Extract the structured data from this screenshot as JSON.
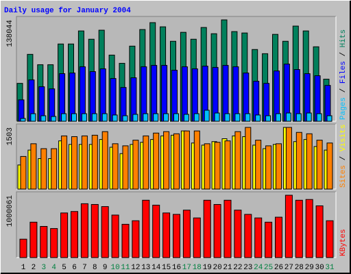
{
  "chart_data": [
    {
      "type": "bar",
      "title": "Daily usage for January 2004",
      "ylim": [
        0,
        138044
      ],
      "yticks": [
        138044
      ],
      "legend_separator": " / ",
      "series": [
        {
          "name": "Hits",
          "color": "#00805c",
          "values": [
            51600,
            91100,
            77000,
            77000,
            105200,
            105200,
            123000,
            111700,
            124000,
            90100,
            78900,
            102300,
            124900,
            134300,
            128600,
            108900,
            121100,
            111700,
            127700,
            119200,
            138044,
            122100,
            120200,
            97700,
            92000,
            118300,
            108900,
            129600,
            123000,
            101400,
            57300
          ]
        },
        {
          "name": "Files",
          "color": "#0000ff",
          "values": [
            29100,
            56300,
            47000,
            44100,
            64800,
            65700,
            74200,
            67600,
            71400,
            58200,
            46000,
            59200,
            74200,
            76100,
            76100,
            69500,
            74200,
            71400,
            75100,
            73300,
            76100,
            74200,
            65700,
            54500,
            51600,
            68500,
            77900,
            70400,
            64800,
            62000,
            48800
          ]
        },
        {
          "name": "Pages",
          "color": "#00c0ff",
          "values": [
            3800,
            10300,
            7500,
            6500,
            10300,
            10300,
            10300,
            10300,
            10300,
            8500,
            7500,
            9400,
            10300,
            10300,
            10300,
            10300,
            9400,
            10300,
            15000,
            11200,
            10300,
            10300,
            10300,
            8500,
            7500,
            10300,
            11200,
            10300,
            11200,
            10300,
            7500
          ]
        }
      ]
    },
    {
      "type": "bar",
      "ylim": [
        0,
        1503
      ],
      "yticks": [
        1503
      ],
      "legend_separator": " / ",
      "series": [
        {
          "name": "Visits",
          "color": "#ffff00",
          "values": [
            587,
            950,
            743,
            743,
            1175,
            1088,
            1088,
            1088,
            1209,
            1019,
            864,
            1088,
            1140,
            1209,
            1296,
            1313,
            1417,
            1123,
            1071,
            1157,
            1227,
            1296,
            1278,
            1071,
            985,
            1088,
            1503,
            1157,
            1209,
            1037,
            950
          ]
        },
        {
          "name": "Sites",
          "color": "#ff8000",
          "values": [
            795,
            1105,
            985,
            985,
            1296,
            1278,
            1296,
            1313,
            1400,
            1105,
            1054,
            1192,
            1296,
            1365,
            1400,
            1348,
            1417,
            1417,
            1105,
            1140,
            1175,
            1400,
            1503,
            1192,
            1054,
            1105,
            1503,
            1382,
            1348,
            1192,
            1123
          ]
        }
      ]
    },
    {
      "type": "bar",
      "ylim": [
        0,
        1000061
      ],
      "yticks": [
        1000061
      ],
      "categories": [
        "1",
        "2",
        "3",
        "4",
        "5",
        "6",
        "7",
        "8",
        "9",
        "10",
        "11",
        "12",
        "13",
        "14",
        "15",
        "16",
        "17",
        "18",
        "19",
        "20",
        "21",
        "22",
        "23",
        "24",
        "25",
        "26",
        "27",
        "28",
        "29",
        "30",
        "31"
      ],
      "category_colors": [
        "#000000",
        "#000000",
        "#008040",
        "#008040",
        "#000000",
        "#000000",
        "#000000",
        "#000000",
        "#000000",
        "#008040",
        "#008040",
        "#000000",
        "#000000",
        "#000000",
        "#000000",
        "#000000",
        "#008040",
        "#008040",
        "#000000",
        "#000000",
        "#000000",
        "#000000",
        "#000000",
        "#008040",
        "#008040",
        "#000000",
        "#000000",
        "#000000",
        "#000000",
        "#000000",
        "#008040"
      ],
      "series": [
        {
          "name": "KBytes",
          "color": "#ff0000",
          "values": [
            295000,
            568000,
            500000,
            466000,
            716000,
            739000,
            864000,
            852000,
            818000,
            682000,
            534000,
            591000,
            920000,
            841000,
            716000,
            693000,
            761000,
            636000,
            920000,
            852000,
            920000,
            761000,
            693000,
            636000,
            568000,
            648000,
            1000061,
            920000,
            932000,
            830000,
            591000
          ]
        }
      ]
    }
  ]
}
